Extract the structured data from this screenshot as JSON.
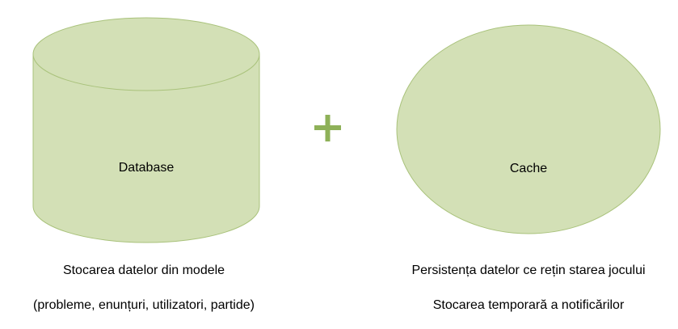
{
  "colors": {
    "shape_fill": "#d3e0b6",
    "shape_stroke": "#a9c27b",
    "plus": "#8eb158"
  },
  "database": {
    "label": "Database",
    "caption_line1": "Stocarea datelor din modele",
    "caption_line2": "(probleme, enunțuri, utilizatori, partide)"
  },
  "operator": {
    "symbol": "plus-icon"
  },
  "cache": {
    "label": "Cache",
    "caption_line1": "Persistența datelor ce rețin starea jocului",
    "caption_line2": "Stocarea temporară a notificărilor"
  }
}
